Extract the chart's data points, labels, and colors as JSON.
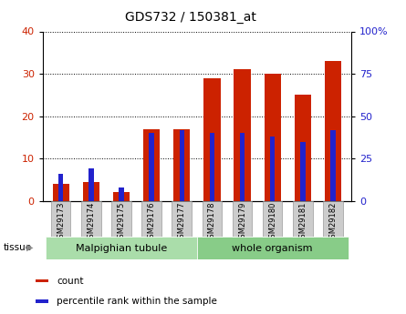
{
  "title": "GDS732 / 150381_at",
  "samples": [
    "GSM29173",
    "GSM29174",
    "GSM29175",
    "GSM29176",
    "GSM29177",
    "GSM29178",
    "GSM29179",
    "GSM29180",
    "GSM29181",
    "GSM29182"
  ],
  "counts": [
    4,
    4.5,
    2,
    17,
    17,
    29,
    31,
    30,
    25,
    33
  ],
  "percentile_pct": [
    16,
    19,
    8,
    40,
    42,
    40,
    40,
    38,
    35,
    42
  ],
  "ylim_left": [
    0,
    40
  ],
  "ylim_right": [
    0,
    100
  ],
  "yticks_left": [
    0,
    10,
    20,
    30,
    40
  ],
  "yticks_right": [
    0,
    25,
    50,
    75,
    100
  ],
  "bar_color": "#cc2200",
  "dot_color": "#2222cc",
  "tissue_groups": [
    {
      "label": "Malpighian tubule",
      "start": 0,
      "end": 5,
      "color": "#aaddaa"
    },
    {
      "label": "whole organism",
      "start": 5,
      "end": 10,
      "color": "#88cc88"
    }
  ],
  "tissue_label": "tissue",
  "legend_items": [
    {
      "label": "count",
      "color": "#cc2200"
    },
    {
      "label": "percentile rank within the sample",
      "color": "#2222cc"
    }
  ],
  "bar_color_hex": "#cc2200",
  "dot_color_hex": "#2222cc",
  "tick_label_color_left": "#cc2200",
  "tick_label_color_right": "#2222cc",
  "bar_width": 0.55
}
